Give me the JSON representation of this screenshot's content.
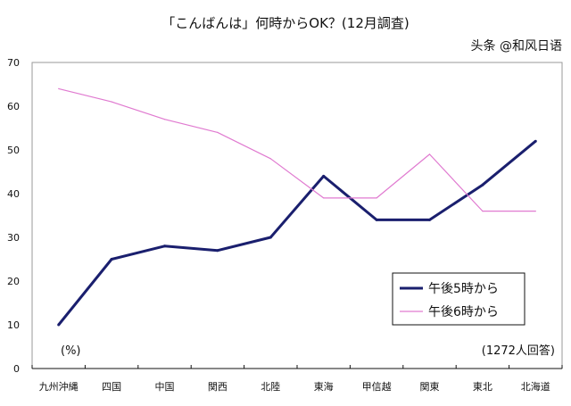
{
  "chart_data": {
    "type": "line",
    "title": "「こんばんは」何時からOK？(12月調査)",
    "categories": [
      "九州沖縄",
      "四国",
      "中国",
      "関西",
      "北陸",
      "東海",
      "甲信越",
      "関東",
      "東北",
      "北海道"
    ],
    "series": [
      {
        "name": "午後5時から",
        "color": "#1a1f6e",
        "values": [
          10,
          25,
          28,
          27,
          30,
          44,
          34,
          34,
          42,
          52
        ]
      },
      {
        "name": "午後6時から",
        "color": "#e07ad0",
        "values": [
          64,
          61,
          57,
          54,
          48,
          39,
          39,
          49,
          36,
          36
        ]
      }
    ],
    "ylim": [
      0,
      70
    ],
    "yticks": [
      0,
      10,
      20,
      30,
      40,
      50,
      60,
      70
    ],
    "grid": false,
    "legend": "right",
    "annotations": {
      "unit": "(%)",
      "respondents": "(1272人回答)"
    }
  },
  "watermark": "头条 @和风日语"
}
